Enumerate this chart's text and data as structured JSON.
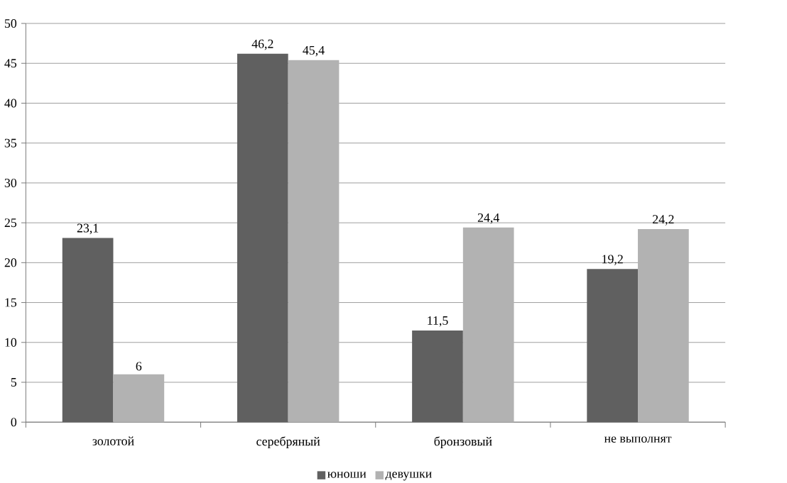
{
  "chart_data": {
    "type": "bar",
    "categories": [
      "золотой",
      "серебряный",
      "бронзовый",
      "не выполнят"
    ],
    "series": [
      {
        "name": "юноши",
        "color": "#606060",
        "values": [
          23.1,
          46.2,
          11.5,
          19.2
        ],
        "value_labels": [
          "23,1",
          "46,2",
          "11,5",
          "19,2"
        ]
      },
      {
        "name": "девушки",
        "color": "#b2b2b2",
        "values": [
          6,
          45.4,
          24.4,
          24.2
        ],
        "value_labels": [
          "6",
          "45,4",
          "24,4",
          "24,2"
        ]
      }
    ],
    "ylim": [
      0,
      50
    ],
    "yticks": [
      0,
      5,
      10,
      15,
      20,
      25,
      30,
      35,
      40,
      45,
      50
    ],
    "grid": "y",
    "legend": "bottom"
  }
}
